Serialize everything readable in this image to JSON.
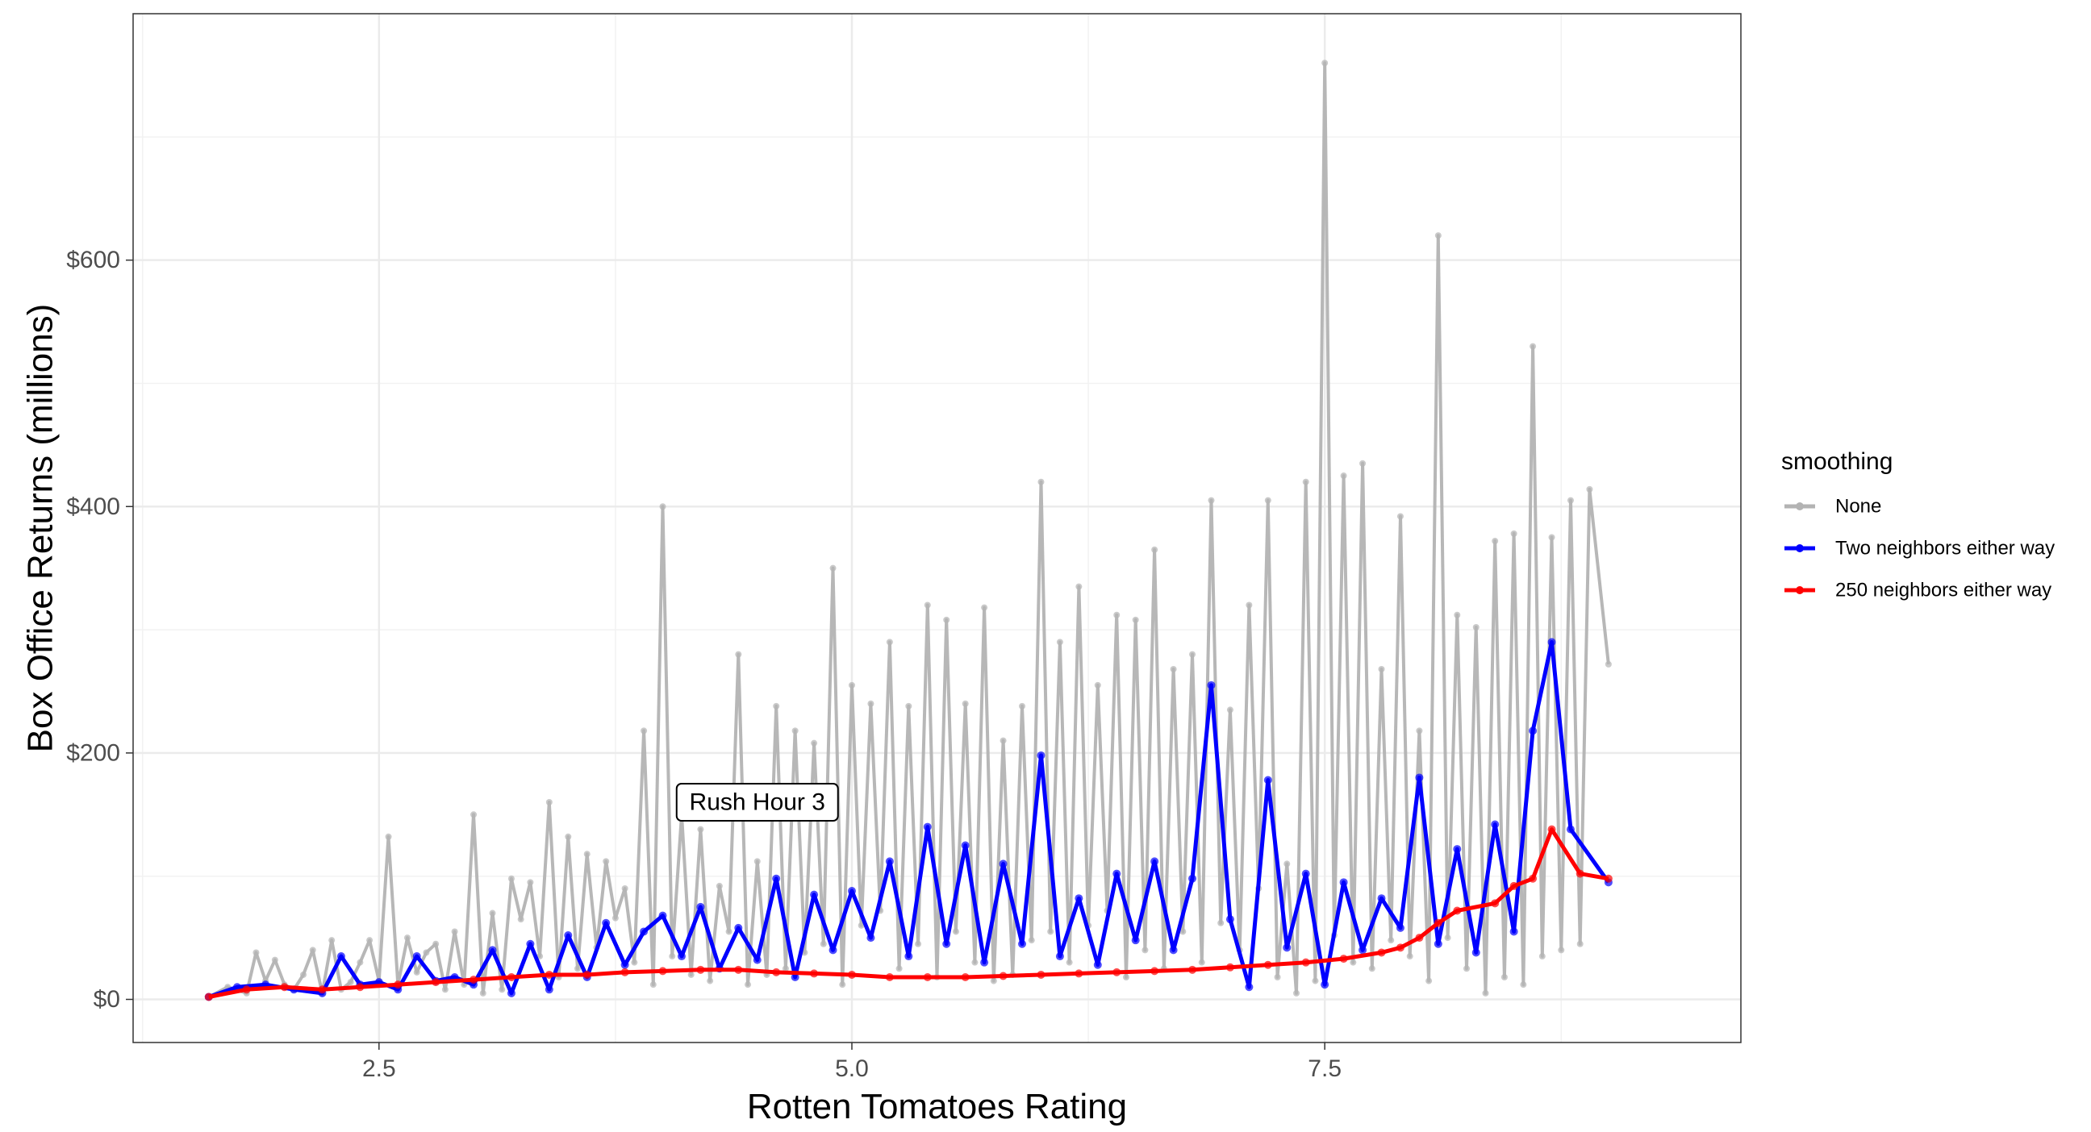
{
  "chart_data": {
    "type": "line",
    "title": "",
    "xlabel": "Rotten Tomatoes Rating",
    "ylabel": "Box Office Returns (millions)",
    "xlim": [
      1.2,
      9.7
    ],
    "ylim": [
      -35,
      800
    ],
    "x_ticks": [
      2.5,
      5.0,
      7.5
    ],
    "x_tick_labels": [
      "2.5",
      "5.0",
      "7.5"
    ],
    "y_ticks": [
      0,
      200,
      400,
      600
    ],
    "y_tick_labels": [
      "$0",
      "$200",
      "$400",
      "$600"
    ],
    "grid": true,
    "legend": {
      "title": "smoothing",
      "position": "right",
      "entries": [
        "None",
        "Two neighbors either way",
        "250 neighbors either way"
      ]
    },
    "annotations": [
      {
        "text": "Rush Hour 3",
        "x": 4.5,
        "y": 160
      }
    ],
    "series": [
      {
        "name": "None",
        "color": "#b3b3b3",
        "x": [
          1.6,
          1.7,
          1.8,
          1.85,
          1.9,
          1.95,
          2.0,
          2.05,
          2.1,
          2.15,
          2.2,
          2.25,
          2.3,
          2.35,
          2.4,
          2.45,
          2.5,
          2.55,
          2.6,
          2.65,
          2.7,
          2.75,
          2.8,
          2.85,
          2.9,
          2.95,
          3.0,
          3.05,
          3.1,
          3.15,
          3.2,
          3.25,
          3.3,
          3.35,
          3.4,
          3.45,
          3.5,
          3.55,
          3.6,
          3.65,
          3.7,
          3.75,
          3.8,
          3.85,
          3.9,
          3.95,
          4.0,
          4.05,
          4.1,
          4.15,
          4.2,
          4.25,
          4.3,
          4.35,
          4.4,
          4.45,
          4.5,
          4.55,
          4.6,
          4.65,
          4.7,
          4.75,
          4.8,
          4.85,
          4.9,
          4.95,
          5.0,
          5.05,
          5.1,
          5.15,
          5.2,
          5.25,
          5.3,
          5.35,
          5.4,
          5.45,
          5.5,
          5.55,
          5.6,
          5.65,
          5.7,
          5.75,
          5.8,
          5.85,
          5.9,
          5.95,
          6.0,
          6.05,
          6.1,
          6.15,
          6.2,
          6.25,
          6.3,
          6.35,
          6.4,
          6.45,
          6.5,
          6.55,
          6.6,
          6.65,
          6.7,
          6.75,
          6.8,
          6.85,
          6.9,
          6.95,
          7.0,
          7.05,
          7.1,
          7.15,
          7.2,
          7.25,
          7.3,
          7.35,
          7.4,
          7.45,
          7.5,
          7.55,
          7.6,
          7.65,
          7.7,
          7.75,
          7.8,
          7.85,
          7.9,
          7.95,
          8.0,
          8.05,
          8.1,
          8.15,
          8.2,
          8.25,
          8.3,
          8.35,
          8.4,
          8.45,
          8.5,
          8.55,
          8.6,
          8.65,
          8.7,
          8.75,
          8.8,
          8.85,
          8.9,
          9.0
        ],
        "values": [
          2,
          10,
          5,
          38,
          15,
          32,
          12,
          8,
          20,
          40,
          5,
          48,
          8,
          14,
          30,
          48,
          15,
          132,
          12,
          50,
          22,
          38,
          45,
          8,
          55,
          12,
          150,
          5,
          70,
          8,
          98,
          65,
          95,
          35,
          160,
          18,
          132,
          25,
          118,
          42,
          112,
          66,
          90,
          30,
          218,
          12,
          400,
          35,
          150,
          20,
          138,
          15,
          92,
          55,
          280,
          12,
          112,
          20,
          238,
          25,
          218,
          38,
          208,
          45,
          350,
          12,
          255,
          60,
          240,
          72,
          290,
          25,
          238,
          45,
          320,
          18,
          308,
          55,
          240,
          30,
          318,
          15,
          210,
          20,
          238,
          48,
          420,
          55,
          290,
          30,
          335,
          60,
          255,
          72,
          312,
          18,
          308,
          40,
          365,
          25,
          268,
          55,
          280,
          30,
          405,
          62,
          235,
          40,
          320,
          90,
          405,
          18,
          110,
          5,
          420,
          15,
          760,
          52,
          425,
          30,
          435,
          25,
          268,
          48,
          392,
          35,
          218,
          15,
          620,
          50,
          312,
          25,
          302,
          5,
          372,
          18,
          378,
          12,
          530,
          35,
          375,
          40,
          405,
          45,
          414,
          272
        ]
      },
      {
        "name": "Two neighbors either way",
        "color": "#0000ff",
        "x": [
          1.6,
          1.75,
          1.9,
          2.05,
          2.2,
          2.3,
          2.4,
          2.5,
          2.6,
          2.7,
          2.8,
          2.9,
          3.0,
          3.1,
          3.2,
          3.3,
          3.4,
          3.5,
          3.6,
          3.7,
          3.8,
          3.9,
          4.0,
          4.1,
          4.2,
          4.3,
          4.4,
          4.5,
          4.6,
          4.7,
          4.8,
          4.9,
          5.0,
          5.1,
          5.2,
          5.3,
          5.4,
          5.5,
          5.6,
          5.7,
          5.8,
          5.9,
          6.0,
          6.1,
          6.2,
          6.3,
          6.4,
          6.5,
          6.6,
          6.7,
          6.8,
          6.9,
          7.0,
          7.1,
          7.2,
          7.3,
          7.4,
          7.5,
          7.6,
          7.7,
          7.8,
          7.9,
          8.0,
          8.1,
          8.2,
          8.3,
          8.4,
          8.5,
          8.6,
          8.7,
          8.8,
          9.0
        ],
        "values": [
          2,
          10,
          12,
          8,
          5,
          35,
          12,
          14,
          8,
          35,
          15,
          18,
          12,
          40,
          5,
          45,
          8,
          52,
          18,
          62,
          28,
          55,
          68,
          35,
          75,
          25,
          58,
          32,
          98,
          18,
          85,
          40,
          88,
          50,
          112,
          35,
          140,
          45,
          125,
          30,
          110,
          45,
          198,
          35,
          82,
          28,
          102,
          48,
          112,
          40,
          98,
          255,
          65,
          10,
          178,
          42,
          102,
          12,
          95,
          40,
          82,
          58,
          180,
          45,
          122,
          38,
          142,
          55,
          218,
          290,
          138,
          95
        ]
      },
      {
        "name": "250 neighbors either way",
        "color": "#ff0000",
        "x": [
          1.6,
          1.8,
          2.0,
          2.2,
          2.4,
          2.6,
          2.8,
          3.0,
          3.2,
          3.4,
          3.6,
          3.8,
          4.0,
          4.2,
          4.4,
          4.6,
          4.8,
          5.0,
          5.2,
          5.4,
          5.6,
          5.8,
          6.0,
          6.2,
          6.4,
          6.6,
          6.8,
          7.0,
          7.2,
          7.4,
          7.6,
          7.8,
          7.9,
          8.0,
          8.1,
          8.2,
          8.4,
          8.5,
          8.6,
          8.7,
          8.85,
          9.0
        ],
        "values": [
          2,
          8,
          10,
          8,
          10,
          12,
          14,
          16,
          18,
          20,
          20,
          22,
          23,
          24,
          24,
          22,
          21,
          20,
          18,
          18,
          18,
          19,
          20,
          21,
          22,
          23,
          24,
          26,
          28,
          30,
          33,
          38,
          42,
          50,
          62,
          72,
          78,
          92,
          98,
          138,
          102,
          98
        ]
      }
    ]
  }
}
